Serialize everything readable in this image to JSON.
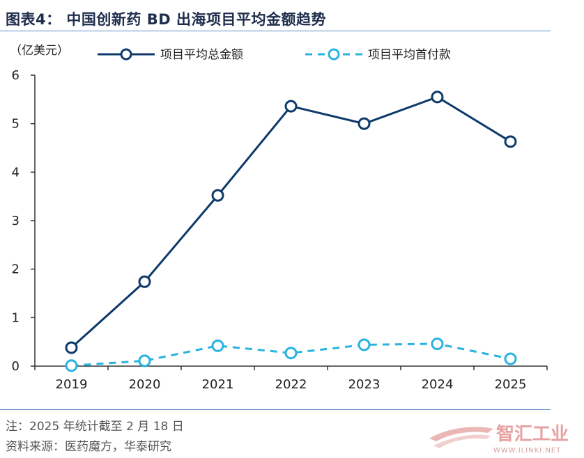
{
  "figure": {
    "title": "图表4：  中国创新药 BD 出海项目平均金额趋势",
    "note": "注：2025 年统计截至 2 月 18 日",
    "source": "资料来源：医药魔方，华泰研究",
    "watermark_text": "智汇工业",
    "watermark_url": "WWW.ILINKI.NET"
  },
  "colors": {
    "total": "#0e3a6b",
    "upfront": "#28b3e0",
    "axis": "#333333",
    "rule": "#5b8cc0"
  },
  "chart_data": {
    "type": "line",
    "unit_label": "（亿美元）",
    "xlabel": "",
    "ylabel": "",
    "categories": [
      "2019",
      "2020",
      "2021",
      "2022",
      "2023",
      "2024",
      "2025"
    ],
    "ylim": [
      0,
      6
    ],
    "yticks": [
      "0",
      "1",
      "2",
      "3",
      "4",
      "5",
      "6"
    ],
    "grid": false,
    "legend_position": "top",
    "series": [
      {
        "name": "项目平均总金额",
        "style": "solid",
        "values": [
          0.38,
          1.74,
          3.52,
          5.36,
          5.0,
          5.55,
          4.63
        ]
      },
      {
        "name": "项目平均首付款",
        "style": "dashed",
        "values": [
          0.01,
          0.11,
          0.42,
          0.27,
          0.44,
          0.46,
          0.15
        ]
      }
    ]
  }
}
